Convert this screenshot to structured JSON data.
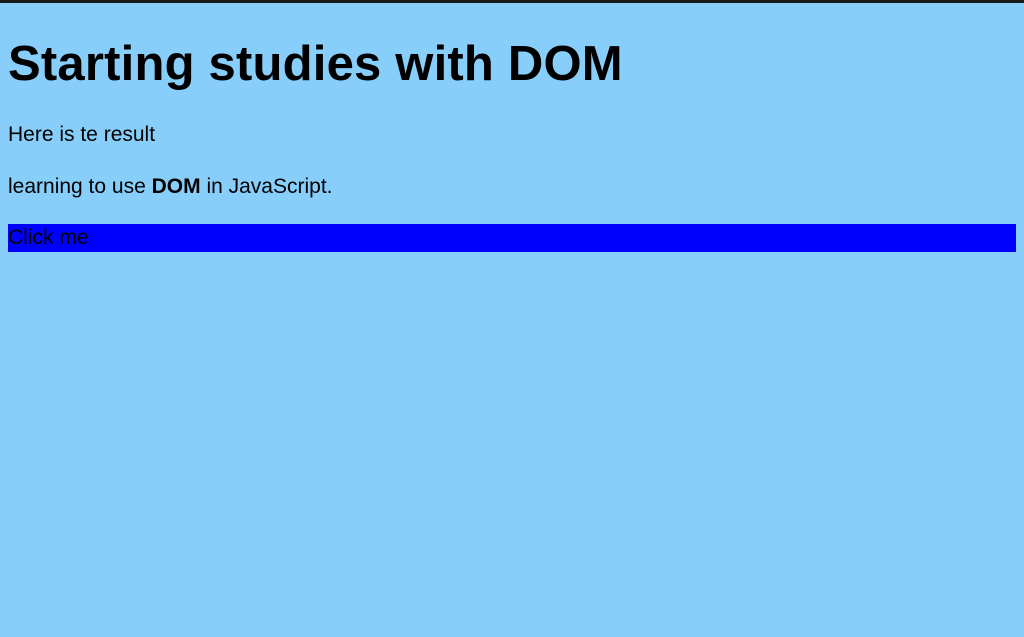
{
  "page": {
    "heading": "Starting studies with DOM",
    "result_text": "Here is te result",
    "learning": {
      "prefix": "learning to use ",
      "bold": "DOM",
      "suffix": " in JavaScript."
    },
    "button_label": "Click me"
  },
  "colors": {
    "background": "#87cefa",
    "button_background": "#0000ff",
    "top_border": "#1a1a1a"
  }
}
